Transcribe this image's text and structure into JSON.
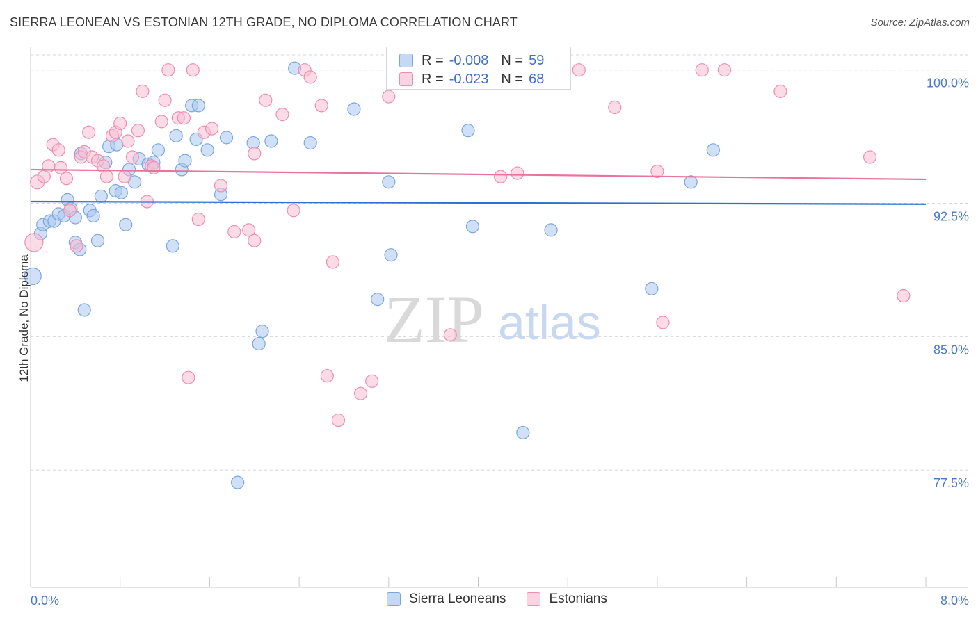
{
  "header": {
    "title": "SIERRA LEONEAN VS ESTONIAN 12TH GRADE, NO DIPLOMA CORRELATION CHART",
    "source": "Source: ZipAtlas.com"
  },
  "watermark": {
    "zip": "ZIP",
    "atlas": "atlas"
  },
  "legend_box": {
    "rows": [
      {
        "r_label": "R =",
        "r_value": "-0.008",
        "n_label": "N =",
        "n_value": "59",
        "color": "#7aa6e0"
      },
      {
        "r_label": "R =",
        "r_value": "-0.023",
        "n_label": "N =",
        "n_value": "68",
        "color": "#f08cb0"
      }
    ]
  },
  "bottom_legend": [
    {
      "label": "Sierra Leoneans",
      "color": "#7aa6e0"
    },
    {
      "label": "Estonians",
      "color": "#f08cb0"
    }
  ],
  "colors": {
    "blue_fill": "#a9c7ee",
    "blue_stroke": "#7aa6e0",
    "blue_line": "#2f6fcf",
    "pink_fill": "#f7bdd1",
    "pink_stroke": "#f08cb0",
    "pink_line": "#e8739b",
    "grid": "#d6d6d6",
    "tick_label": "#4a78c8"
  },
  "chart_data": {
    "type": "scatter",
    "title": "SIERRA LEONEAN VS ESTONIAN 12TH GRADE, NO DIPLOMA CORRELATION CHART",
    "xlabel": "",
    "ylabel": "12th Grade, No Diploma",
    "xlim": [
      0,
      8
    ],
    "ylim": [
      70.9,
      101.2
    ],
    "x_tick_labels": [
      "0.0%",
      "8.0%"
    ],
    "y_ticks": [
      100.0,
      92.5,
      85.0,
      77.5
    ],
    "y_tick_labels": [
      "100.0%",
      "92.5%",
      "85.0%",
      "77.5%"
    ],
    "grid": "horizontal dashed",
    "legend": "top-center",
    "series": [
      {
        "name": "Sierra Leoneans",
        "stats": {
          "R": -0.008,
          "N": 59
        },
        "trend": [
          [
            0,
            92.6
          ],
          [
            8,
            92.45
          ]
        ],
        "points": [
          [
            0.02,
            88.4,
            12
          ],
          [
            0.09,
            90.8,
            9
          ],
          [
            0.11,
            91.3,
            9
          ],
          [
            0.17,
            91.5,
            9
          ],
          [
            0.21,
            91.5,
            9
          ],
          [
            0.25,
            91.9,
            9
          ],
          [
            0.3,
            91.8,
            9
          ],
          [
            0.33,
            92.7,
            9
          ],
          [
            0.36,
            92.2,
            9
          ],
          [
            0.4,
            91.7,
            9
          ],
          [
            0.4,
            90.3,
            9
          ],
          [
            0.44,
            89.9,
            9
          ],
          [
            0.48,
            86.5,
            9
          ],
          [
            0.53,
            92.1,
            9
          ],
          [
            0.56,
            91.8,
            9
          ],
          [
            0.6,
            90.4,
            9
          ],
          [
            0.63,
            92.9,
            9
          ],
          [
            0.67,
            94.8,
            9
          ],
          [
            0.7,
            95.7,
            9
          ],
          [
            0.77,
            95.8,
            9
          ],
          [
            0.76,
            93.2,
            9
          ],
          [
            0.81,
            93.1,
            9
          ],
          [
            0.85,
            91.3,
            9
          ],
          [
            0.88,
            94.4,
            9
          ],
          [
            0.93,
            93.7,
            9
          ],
          [
            0.97,
            95.0,
            9
          ],
          [
            1.05,
            94.7,
            9
          ],
          [
            1.1,
            94.8,
            9
          ],
          [
            1.14,
            95.5,
            9
          ],
          [
            1.27,
            90.1,
            9
          ],
          [
            1.3,
            96.3,
            9
          ],
          [
            1.35,
            94.4,
            9
          ],
          [
            1.38,
            94.9,
            9
          ],
          [
            1.44,
            98.0,
            9
          ],
          [
            1.48,
            96.1,
            9
          ],
          [
            1.5,
            98.0,
            9
          ],
          [
            1.58,
            95.5,
            9
          ],
          [
            1.7,
            93.0,
            9
          ],
          [
            1.75,
            96.2,
            9
          ],
          [
            1.85,
            76.8,
            9
          ],
          [
            1.99,
            95.9,
            9
          ],
          [
            2.04,
            84.6,
            9
          ],
          [
            2.07,
            85.3,
            9
          ],
          [
            2.15,
            96.0,
            9
          ],
          [
            2.36,
            100.1,
            9
          ],
          [
            2.5,
            95.9,
            9
          ],
          [
            2.89,
            97.8,
            9
          ],
          [
            3.1,
            87.1,
            9
          ],
          [
            3.2,
            93.7,
            9
          ],
          [
            3.22,
            89.6,
            9
          ],
          [
            3.91,
            96.6,
            9
          ],
          [
            3.95,
            91.2,
            9
          ],
          [
            4.4,
            100.1,
            9
          ],
          [
            4.4,
            79.6,
            9
          ],
          [
            4.65,
            91.0,
            9
          ],
          [
            5.55,
            87.7,
            9
          ],
          [
            5.9,
            93.7,
            9
          ],
          [
            6.1,
            95.5,
            9
          ],
          [
            0.45,
            95.3,
            9
          ]
        ]
      },
      {
        "name": "Estonians",
        "stats": {
          "R": -0.023,
          "N": 68
        },
        "trend": [
          [
            0,
            94.4
          ],
          [
            8,
            93.85
          ]
        ],
        "points": [
          [
            0.03,
            90.3,
            13
          ],
          [
            0.06,
            93.7,
            10
          ],
          [
            0.12,
            94.0,
            9
          ],
          [
            0.16,
            94.6,
            9
          ],
          [
            0.2,
            95.8,
            9
          ],
          [
            0.25,
            95.5,
            9
          ],
          [
            0.27,
            94.5,
            9
          ],
          [
            0.32,
            93.9,
            9
          ],
          [
            0.35,
            92.1,
            9
          ],
          [
            0.41,
            90.1,
            9
          ],
          [
            0.45,
            95.1,
            9
          ],
          [
            0.48,
            95.4,
            9
          ],
          [
            0.52,
            96.5,
            9
          ],
          [
            0.55,
            95.1,
            9
          ],
          [
            0.6,
            94.9,
            9
          ],
          [
            0.65,
            94.6,
            9
          ],
          [
            0.68,
            94.0,
            9
          ],
          [
            0.73,
            96.3,
            9
          ],
          [
            0.76,
            96.5,
            9
          ],
          [
            0.8,
            97.0,
            9
          ],
          [
            0.84,
            94.0,
            9
          ],
          [
            0.87,
            96.0,
            9
          ],
          [
            0.91,
            95.1,
            9
          ],
          [
            0.96,
            96.6,
            9
          ],
          [
            1.0,
            98.8,
            9
          ],
          [
            1.04,
            92.6,
            9
          ],
          [
            1.08,
            94.6,
            9
          ],
          [
            1.1,
            94.5,
            9
          ],
          [
            1.17,
            97.1,
            9
          ],
          [
            1.2,
            98.3,
            9
          ],
          [
            1.23,
            100.0,
            9
          ],
          [
            1.32,
            97.3,
            9
          ],
          [
            1.37,
            97.3,
            9
          ],
          [
            1.41,
            82.7,
            9
          ],
          [
            1.45,
            100.0,
            9
          ],
          [
            1.5,
            91.6,
            9
          ],
          [
            1.55,
            96.5,
            9
          ],
          [
            1.62,
            96.7,
            9
          ],
          [
            1.7,
            93.5,
            9
          ],
          [
            1.82,
            90.9,
            9
          ],
          [
            1.95,
            91.0,
            9
          ],
          [
            2.0,
            90.4,
            9
          ],
          [
            2.1,
            98.3,
            9
          ],
          [
            2.25,
            97.5,
            9
          ],
          [
            2.35,
            92.1,
            9
          ],
          [
            2.45,
            100.0,
            9
          ],
          [
            2.5,
            99.6,
            9
          ],
          [
            2.6,
            98.0,
            9
          ],
          [
            2.65,
            82.8,
            9
          ],
          [
            2.7,
            89.2,
            9
          ],
          [
            2.75,
            80.3,
            9
          ],
          [
            2.95,
            81.8,
            9
          ],
          [
            3.05,
            82.5,
            9
          ],
          [
            3.2,
            98.5,
            9
          ],
          [
            3.5,
            100.0,
            9
          ],
          [
            3.75,
            85.1,
            9
          ],
          [
            4.2,
            94.0,
            9
          ],
          [
            4.35,
            94.2,
            9
          ],
          [
            4.9,
            100.0,
            9
          ],
          [
            5.22,
            97.9,
            9
          ],
          [
            5.6,
            94.3,
            9
          ],
          [
            5.65,
            85.8,
            9
          ],
          [
            6.0,
            100.0,
            9
          ],
          [
            6.2,
            100.0,
            9
          ],
          [
            6.7,
            98.8,
            9
          ],
          [
            7.5,
            95.1,
            9
          ],
          [
            7.8,
            87.3,
            9
          ],
          [
            2.0,
            95.3,
            9
          ]
        ]
      }
    ]
  }
}
